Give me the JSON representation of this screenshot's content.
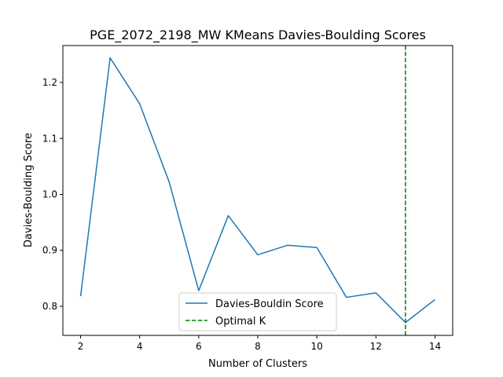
{
  "chart_data": {
    "type": "line",
    "title": "PGE_2072_2198_MW KMeans Davies-Boulding Scores",
    "xlabel": "Number of Clusters",
    "ylabel": "Davies-Boulding Score",
    "xlim": [
      1.4,
      14.6
    ],
    "ylim": [
      0.748,
      1.266
    ],
    "xticks": [
      2,
      4,
      6,
      8,
      10,
      12,
      14
    ],
    "yticks": [
      0.8,
      0.9,
      1.0,
      1.1,
      1.2
    ],
    "xtick_labels": [
      "2",
      "4",
      "6",
      "8",
      "10",
      "12",
      "14"
    ],
    "ytick_labels": [
      "0.8",
      "0.9",
      "1.0",
      "1.1",
      "1.2"
    ],
    "grid": false,
    "legend_position": "bottom-center",
    "series": [
      {
        "name": "Davies-Bouldin Score",
        "color": "#1f77b4",
        "style": "solid",
        "x": [
          2,
          3,
          4,
          5,
          6,
          7,
          8,
          9,
          10,
          11,
          12,
          13,
          14
        ],
        "values": [
          0.818,
          1.244,
          1.162,
          1.022,
          0.828,
          0.962,
          0.892,
          0.909,
          0.905,
          0.816,
          0.824,
          0.771,
          0.812
        ]
      }
    ],
    "vlines": [
      {
        "name": "Optimal K",
        "x": 13,
        "color": "#008000",
        "style": "dashed"
      }
    ]
  }
}
